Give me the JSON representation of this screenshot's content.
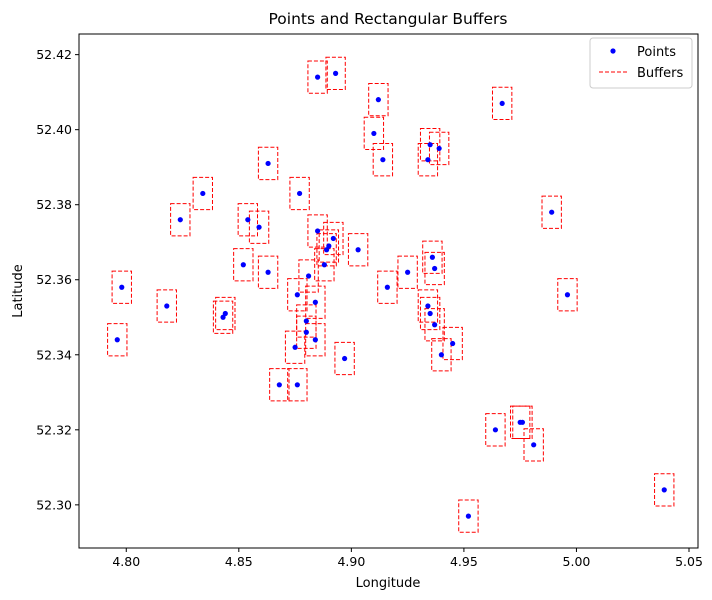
{
  "chart_data": {
    "type": "scatter",
    "title": "Points and Rectangular Buffers",
    "xlabel": "Longitude",
    "ylabel": "Latitude",
    "xlim": [
      4.779,
      5.054
    ],
    "ylim": [
      52.2885,
      52.4255
    ],
    "xticks": [
      4.8,
      4.85,
      4.9,
      4.95,
      5.0,
      5.05
    ],
    "xtick_labels": [
      "4.80",
      "4.85",
      "4.90",
      "4.95",
      "5.00",
      "5.05"
    ],
    "yticks": [
      52.3,
      52.32,
      52.34,
      52.36,
      52.38,
      52.4,
      52.42
    ],
    "ytick_labels": [
      "52.30",
      "52.32",
      "52.34",
      "52.36",
      "52.38",
      "52.40",
      "52.42"
    ],
    "buffer_half_width": 0.0043,
    "buffer_half_height": 0.0043,
    "legend": {
      "position": "top-right",
      "entries": [
        {
          "label": "Points",
          "kind": "marker",
          "color": "#0000ff"
        },
        {
          "label": "Buffers",
          "kind": "dashed-line",
          "color": "#ff0000"
        }
      ]
    },
    "series": [
      {
        "name": "Points",
        "color": "#0000ff",
        "points": [
          [
            4.885,
            52.414
          ],
          [
            4.893,
            52.415
          ],
          [
            4.912,
            52.408
          ],
          [
            4.967,
            52.407
          ],
          [
            4.91,
            52.399
          ],
          [
            4.914,
            52.392
          ],
          [
            4.935,
            52.396
          ],
          [
            4.939,
            52.395
          ],
          [
            4.934,
            52.392
          ],
          [
            4.863,
            52.391
          ],
          [
            4.834,
            52.383
          ],
          [
            4.877,
            52.383
          ],
          [
            4.989,
            52.378
          ],
          [
            4.824,
            52.376
          ],
          [
            4.854,
            52.376
          ],
          [
            4.859,
            52.374
          ],
          [
            4.885,
            52.373
          ],
          [
            4.892,
            52.371
          ],
          [
            4.89,
            52.369
          ],
          [
            4.889,
            52.368
          ],
          [
            4.903,
            52.368
          ],
          [
            4.936,
            52.366
          ],
          [
            4.888,
            52.364
          ],
          [
            4.852,
            52.364
          ],
          [
            4.937,
            52.363
          ],
          [
            4.863,
            52.362
          ],
          [
            4.925,
            52.362
          ],
          [
            4.881,
            52.361
          ],
          [
            4.916,
            52.358
          ],
          [
            4.798,
            52.358
          ],
          [
            4.996,
            52.356
          ],
          [
            4.876,
            52.356
          ],
          [
            4.884,
            52.354
          ],
          [
            4.934,
            52.353
          ],
          [
            4.818,
            52.353
          ],
          [
            4.935,
            52.351
          ],
          [
            4.844,
            52.351
          ],
          [
            4.843,
            52.35
          ],
          [
            4.88,
            52.349
          ],
          [
            4.937,
            52.348
          ],
          [
            4.88,
            52.346
          ],
          [
            4.884,
            52.344
          ],
          [
            4.796,
            52.344
          ],
          [
            4.945,
            52.343
          ],
          [
            4.875,
            52.342
          ],
          [
            4.94,
            52.34
          ],
          [
            4.897,
            52.339
          ],
          [
            4.868,
            52.332
          ],
          [
            4.876,
            52.332
          ],
          [
            4.976,
            52.322
          ],
          [
            4.975,
            52.322
          ],
          [
            4.964,
            52.32
          ],
          [
            4.981,
            52.316
          ],
          [
            5.039,
            52.304
          ],
          [
            4.952,
            52.297
          ]
        ]
      }
    ]
  }
}
